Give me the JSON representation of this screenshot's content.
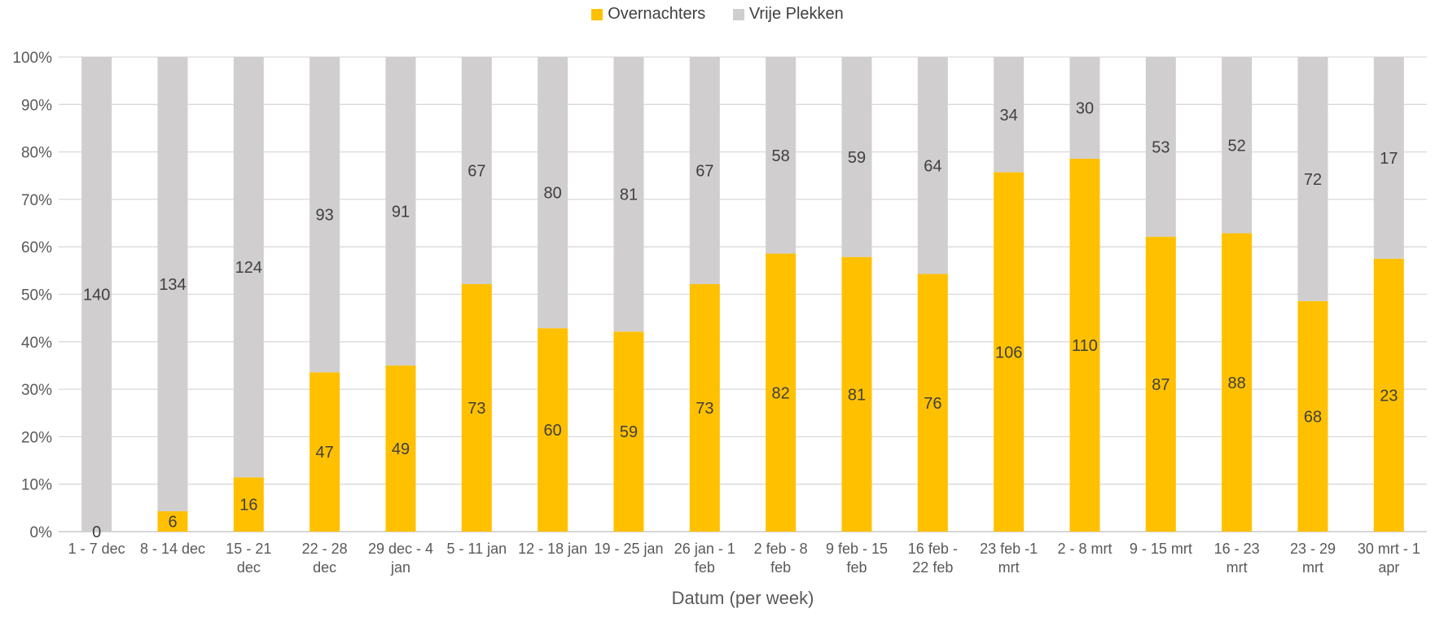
{
  "chart_data": {
    "type": "bar",
    "stacked": true,
    "normalized": true,
    "title": "",
    "xlabel": "Datum (per week)",
    "ylabel": "",
    "ylim": [
      0,
      100
    ],
    "yticks": [
      "0%",
      "10%",
      "20%",
      "30%",
      "40%",
      "50%",
      "60%",
      "70%",
      "80%",
      "90%",
      "100%"
    ],
    "grid": true,
    "legend_position": "top",
    "categories": [
      [
        "1 - 7 dec"
      ],
      [
        "8 - 14 dec"
      ],
      [
        "15 - 21",
        "dec"
      ],
      [
        "22 - 28",
        "dec"
      ],
      [
        "29 dec - 4",
        "jan"
      ],
      [
        "5 - 11 jan"
      ],
      [
        "12 - 18 jan"
      ],
      [
        "19 - 25 jan"
      ],
      [
        "26 jan - 1",
        "feb"
      ],
      [
        "2 feb - 8",
        "feb"
      ],
      [
        "9 feb - 15",
        "feb"
      ],
      [
        "16 feb -",
        "22 feb"
      ],
      [
        "23 feb -1",
        "mrt"
      ],
      [
        "2 - 8 mrt"
      ],
      [
        "9 - 15 mrt"
      ],
      [
        "16 - 23",
        "mrt"
      ],
      [
        "23 - 29",
        "mrt"
      ],
      [
        "30 mrt - 1",
        "apr"
      ]
    ],
    "series": [
      {
        "name": "Overnachters",
        "color": "#FFC000",
        "values": [
          0,
          6,
          16,
          47,
          49,
          73,
          60,
          59,
          73,
          82,
          81,
          76,
          106,
          110,
          87,
          88,
          68,
          23
        ]
      },
      {
        "name": "Vrije Plekken",
        "color": "#D0CECE",
        "values": [
          140,
          134,
          124,
          93,
          91,
          67,
          80,
          81,
          67,
          58,
          59,
          64,
          34,
          30,
          53,
          52,
          72,
          17
        ]
      }
    ]
  }
}
